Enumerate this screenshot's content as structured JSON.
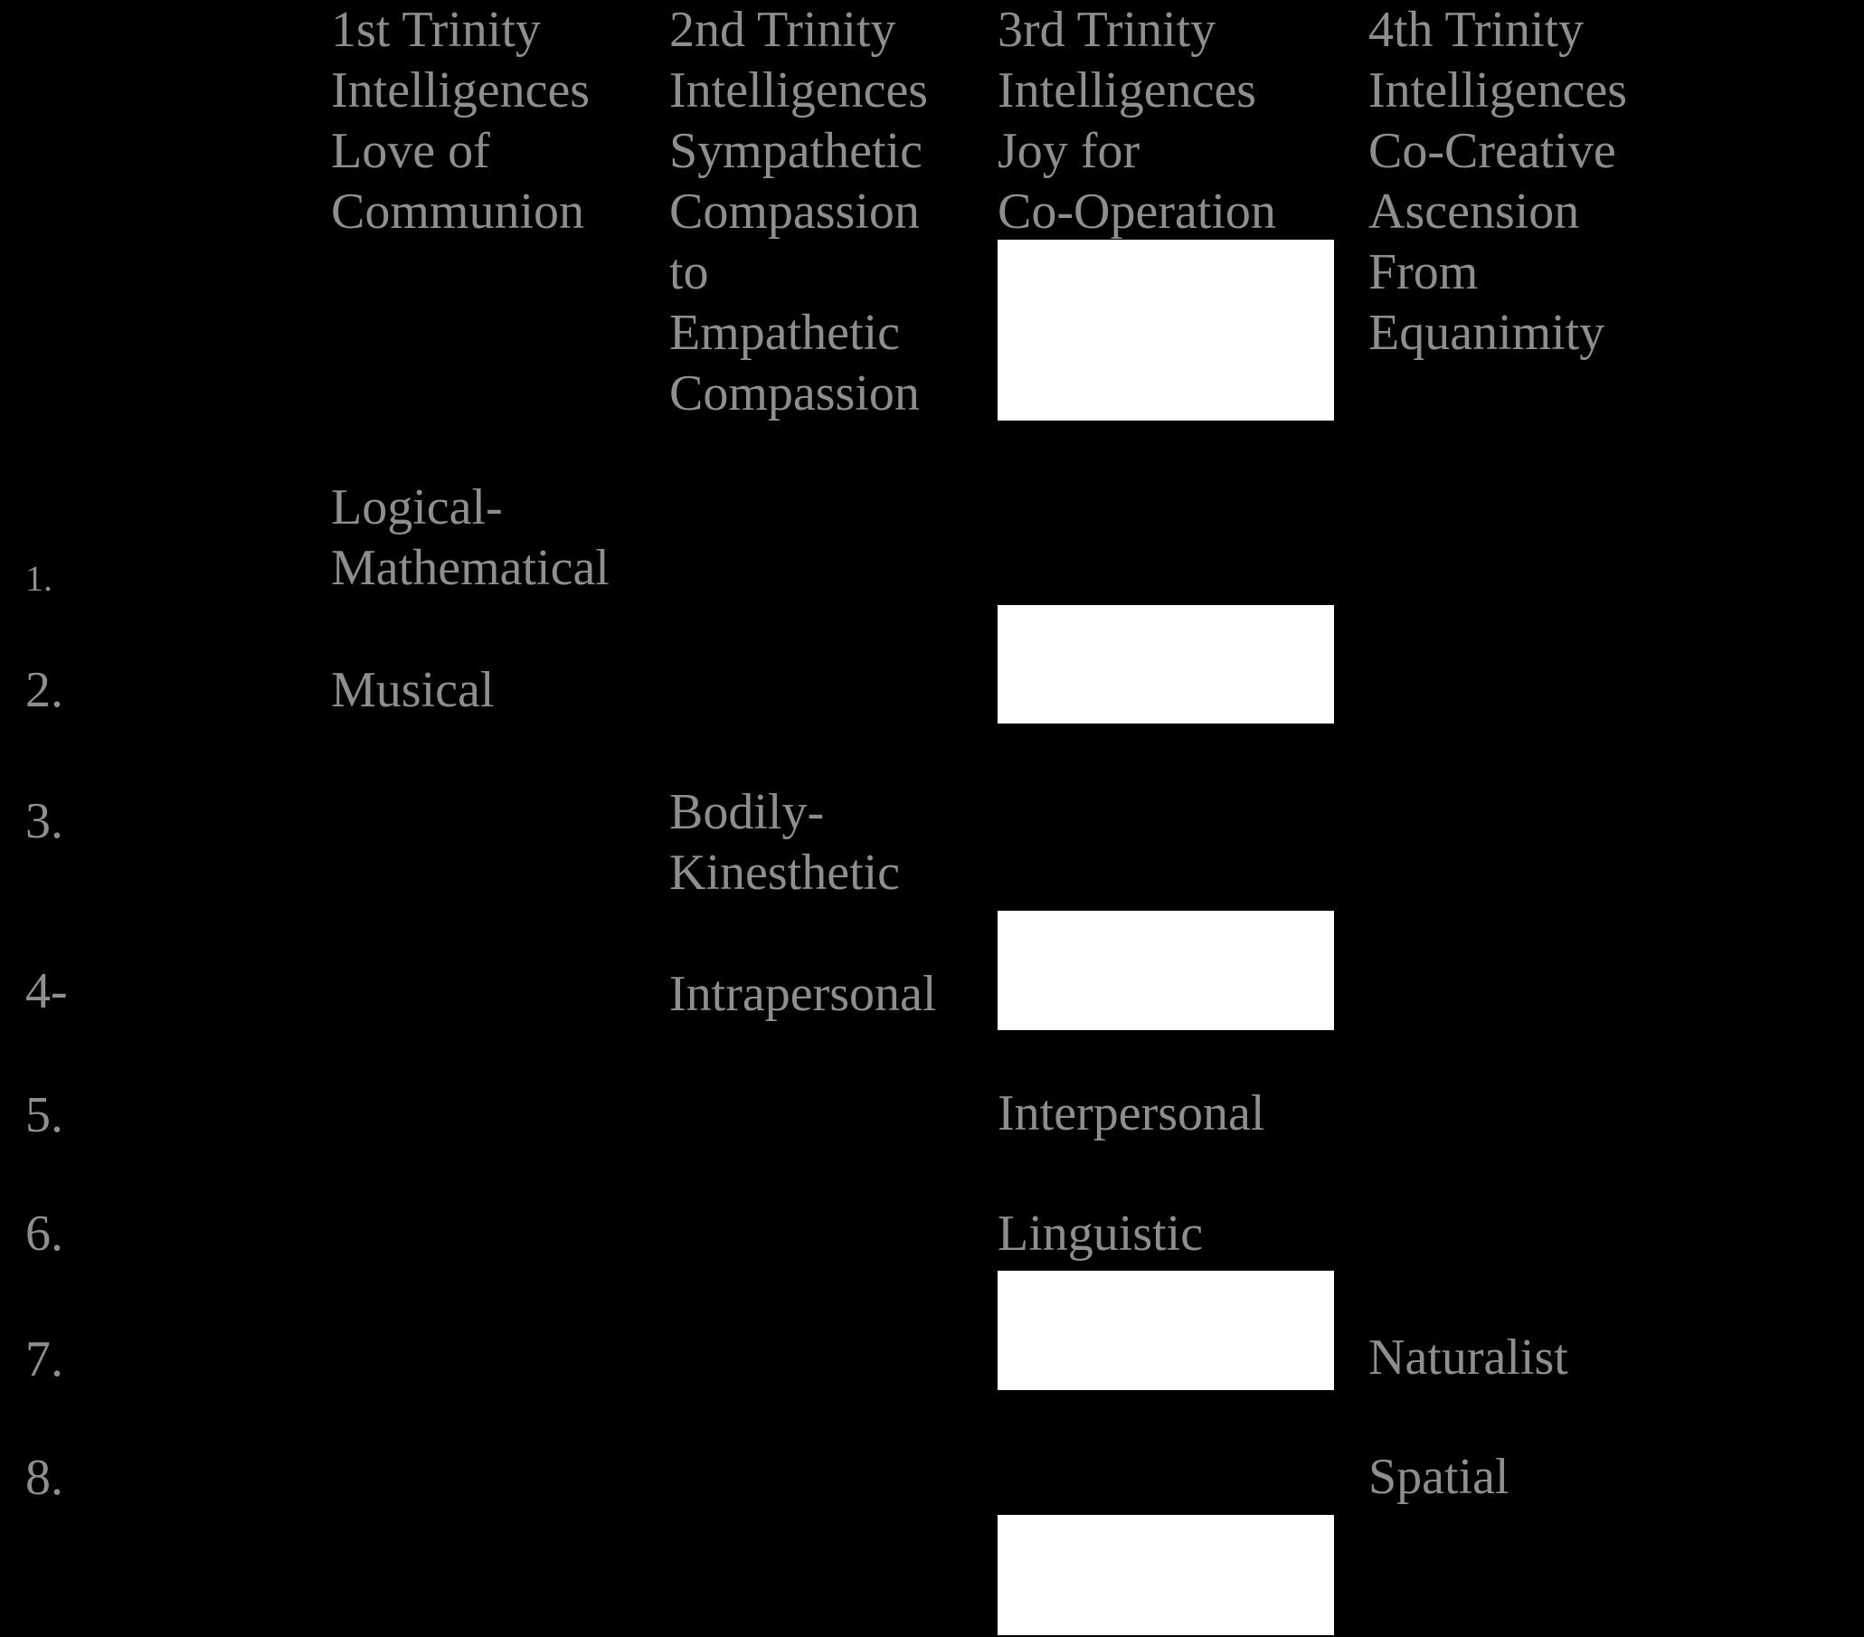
{
  "colors": {
    "background": "#000000",
    "text": "#8e8e8e",
    "redaction_box": "#ffffff"
  },
  "table": {
    "headers": [
      {
        "column": 1,
        "text": "1st Trinity\nIntelligences\nLove of\nCommunion"
      },
      {
        "column": 2,
        "text": "2nd Trinity\nIntelligences\nSympathetic\nCompassion\nto\nEmpathetic\nCompassion"
      },
      {
        "column": 3,
        "text": "3rd Trinity\nIntelligences\nJoy for\nCo-Operation"
      },
      {
        "column": 4,
        "text": "4th Trinity\nIntelligences\nCo-Creative\nAscension\nFrom\nEquanimity"
      }
    ],
    "row_numbers": [
      "1.",
      "2.",
      "3.",
      "4-",
      "5.",
      "6.",
      "7.",
      "8."
    ],
    "items": [
      {
        "row": 1,
        "column": 1,
        "label": "Logical-\nMathematical"
      },
      {
        "row": 2,
        "column": 1,
        "label": "Musical"
      },
      {
        "row": 3,
        "column": 2,
        "label": "Bodily-\nKinesthetic"
      },
      {
        "row": 4,
        "column": 2,
        "label": "Intrapersonal"
      },
      {
        "row": 5,
        "column": 3,
        "label": "Interpersonal"
      },
      {
        "row": 6,
        "column": 3,
        "label": "Linguistic"
      },
      {
        "row": 7,
        "column": 4,
        "label": "Naturalist"
      },
      {
        "row": 8,
        "column": 4,
        "label": "Spatial"
      }
    ],
    "redaction_boxes": [
      {
        "column": 3,
        "position": "below header, rows 1 area"
      },
      {
        "column": 3,
        "position": "rows 1-2 area"
      },
      {
        "column": 3,
        "position": "row 4 area"
      },
      {
        "column": 3,
        "position": "row 7 area"
      },
      {
        "column": 3,
        "position": "below row 8, bottom edge"
      }
    ]
  }
}
